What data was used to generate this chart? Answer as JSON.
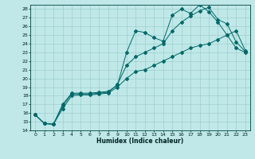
{
  "title": "",
  "xlabel": "Humidex (Indice chaleur)",
  "background_color": "#c0e8e8",
  "grid_color": "#98c8c8",
  "line_color": "#006868",
  "xlim": [
    -0.5,
    23.5
  ],
  "ylim": [
    14,
    28.5
  ],
  "yticks": [
    14,
    15,
    16,
    17,
    18,
    19,
    20,
    21,
    22,
    23,
    24,
    25,
    26,
    27,
    28
  ],
  "xticks": [
    0,
    1,
    2,
    3,
    4,
    5,
    6,
    7,
    8,
    9,
    10,
    11,
    12,
    13,
    14,
    15,
    16,
    17,
    18,
    19,
    20,
    21,
    22,
    23
  ],
  "lines": [
    {
      "x": [
        0,
        1,
        2,
        3,
        4,
        5,
        6,
        7,
        8,
        9,
        10,
        11,
        12,
        13,
        14,
        15,
        16,
        17,
        18,
        19,
        20,
        21,
        22,
        23
      ],
      "y": [
        15.8,
        14.8,
        14.7,
        17.0,
        18.3,
        18.3,
        18.3,
        18.4,
        18.5,
        19.2,
        23.0,
        25.5,
        25.3,
        24.7,
        24.3,
        27.3,
        28.0,
        27.5,
        28.5,
        27.7,
        26.5,
        25.0,
        23.5,
        23.0
      ]
    },
    {
      "x": [
        0,
        1,
        2,
        3,
        4,
        5,
        6,
        7,
        8,
        9,
        10,
        11,
        12,
        13,
        14,
        15,
        16,
        17,
        18,
        19,
        20,
        21,
        22,
        23
      ],
      "y": [
        15.8,
        14.8,
        14.7,
        16.8,
        18.2,
        18.2,
        18.2,
        18.3,
        18.4,
        19.3,
        21.5,
        22.5,
        23.0,
        23.5,
        24.0,
        25.5,
        26.5,
        27.2,
        27.8,
        28.2,
        26.8,
        26.3,
        24.2,
        23.1
      ]
    },
    {
      "x": [
        0,
        1,
        2,
        3,
        4,
        5,
        6,
        7,
        8,
        9,
        10,
        11,
        12,
        13,
        14,
        15,
        16,
        17,
        18,
        19,
        20,
        21,
        22,
        23
      ],
      "y": [
        15.8,
        14.8,
        14.7,
        16.5,
        18.0,
        18.1,
        18.1,
        18.2,
        18.3,
        19.0,
        20.0,
        20.8,
        21.0,
        21.5,
        22.0,
        22.5,
        23.0,
        23.5,
        23.8,
        24.0,
        24.5,
        25.0,
        25.5,
        23.2
      ]
    }
  ]
}
